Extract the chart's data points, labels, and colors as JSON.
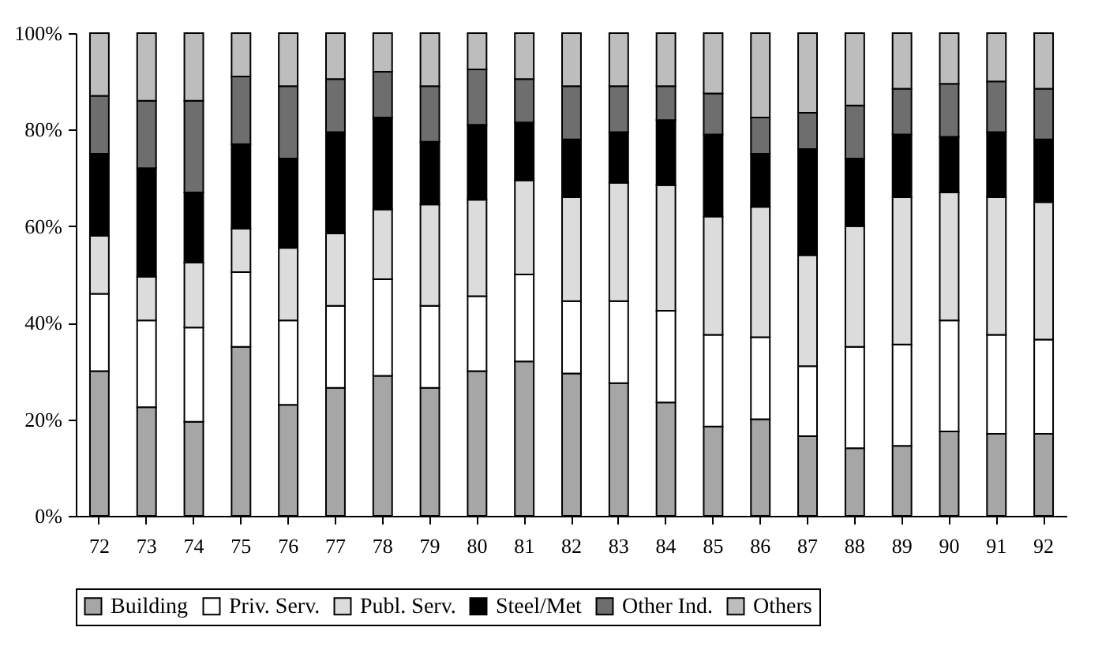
{
  "chart_data": {
    "type": "bar",
    "stacked": true,
    "categories": [
      "72",
      "73",
      "74",
      "75",
      "76",
      "77",
      "78",
      "79",
      "80",
      "81",
      "82",
      "83",
      "84",
      "85",
      "86",
      "87",
      "88",
      "89",
      "90",
      "91",
      "92"
    ],
    "series": [
      {
        "name": "Building",
        "color": "#a6a6a6",
        "values": [
          30,
          22.5,
          19.5,
          35,
          23,
          26.5,
          29,
          26.5,
          30,
          32,
          29.5,
          27.5,
          23.5,
          18.5,
          20,
          16.5,
          14,
          14.5,
          17.5,
          17,
          17
        ]
      },
      {
        "name": "Priv. Serv.",
        "color": "#ffffff",
        "values": [
          16,
          18,
          19.5,
          15.5,
          17.5,
          17,
          20,
          17,
          15.5,
          18,
          15,
          17,
          19,
          19,
          17,
          14.5,
          21,
          21,
          23,
          20.5,
          19.5
        ]
      },
      {
        "name": "Publ. Serv.",
        "color": "#dcdcdc",
        "values": [
          12,
          9,
          13.5,
          9,
          15,
          15,
          14.5,
          21,
          20,
          19.5,
          21.5,
          24.5,
          26,
          24.5,
          27,
          23,
          25,
          30.5,
          26.5,
          28.5,
          28.5
        ]
      },
      {
        "name": "Steel/Met",
        "color": "#000000",
        "values": [
          17,
          22.5,
          14.5,
          17.5,
          18.5,
          21,
          19,
          13,
          15.5,
          12,
          12,
          10.5,
          13.5,
          17,
          11,
          22,
          14,
          13,
          11.5,
          13.5,
          13
        ]
      },
      {
        "name": "Other Ind.",
        "color": "#6e6e6e",
        "values": [
          12,
          14,
          19,
          14,
          15,
          11,
          9.5,
          11.5,
          11.5,
          9,
          11,
          9.5,
          7,
          8.5,
          7.5,
          7.5,
          11,
          9.5,
          11,
          10.5,
          10.5
        ]
      },
      {
        "name": "Others",
        "color": "#bdbdbd",
        "values": [
          13,
          14,
          14,
          9,
          11,
          9.5,
          8,
          11,
          7.5,
          9.5,
          11,
          11,
          11,
          12.5,
          17.5,
          16.5,
          15,
          11.5,
          10.5,
          10,
          11.5
        ]
      }
    ],
    "ylim": [
      0,
      100
    ],
    "yticks": [
      {
        "value": 0,
        "label": "0%"
      },
      {
        "value": 20,
        "label": "20%"
      },
      {
        "value": 40,
        "label": "40%"
      },
      {
        "value": 60,
        "label": "60%"
      },
      {
        "value": 80,
        "label": "80%"
      },
      {
        "value": 100,
        "label": "100%"
      }
    ],
    "grid": false,
    "legend": "bottom"
  }
}
